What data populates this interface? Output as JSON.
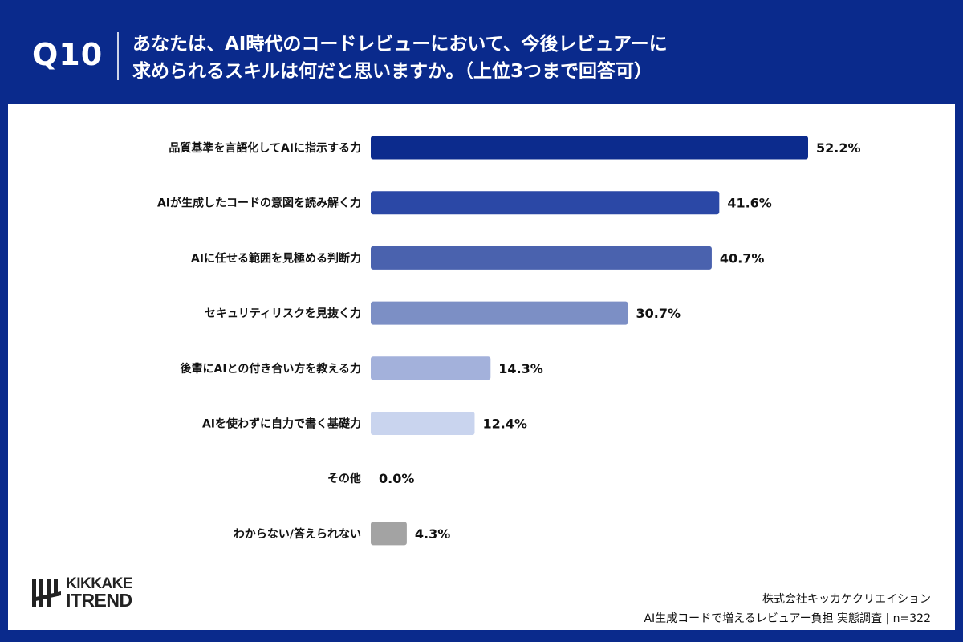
{
  "header": {
    "qnum": "Q10",
    "question_line1": "あなたは、AI時代のコードレビューにおいて、今後レビュアーに",
    "question_line2": "求められるスキルは何だと思いますか。（上位3つまで回答可）"
  },
  "chart_data": {
    "type": "bar",
    "orientation": "horizontal",
    "categories": [
      "品質基準を言語化してAIに指示する力",
      "AIが生成したコードの意図を読み解く力",
      "AIに任せる範囲を見極める判断力",
      "セキュリティリスクを見抜く力",
      "後輩にAIとの付き合い方を教える力",
      "AIを使わずに自力で書く基礎力",
      "その他",
      "わからない/答えられない"
    ],
    "values": [
      52.2,
      41.6,
      40.7,
      30.7,
      14.3,
      12.4,
      0.0,
      4.3
    ],
    "value_labels": [
      "52.2%",
      "41.6%",
      "40.7%",
      "30.7%",
      "14.3%",
      "12.4%",
      "0.0%",
      "4.3%"
    ],
    "colors": [
      "#0c2b8d",
      "#2b48a6",
      "#4a62ae",
      "#7c8fc5",
      "#a3b1db",
      "#c9d4ee",
      "#c9d4ee",
      "#a3a3a3"
    ],
    "unit": "%",
    "grid": false
  },
  "logo": {
    "line1": "KIKKAKE",
    "line2": "ITREND"
  },
  "footer": {
    "company": "株式会社キッカケクリエイション",
    "survey": "AI生成コードで増えるレビュアー負担 実態調査 | n=322"
  }
}
